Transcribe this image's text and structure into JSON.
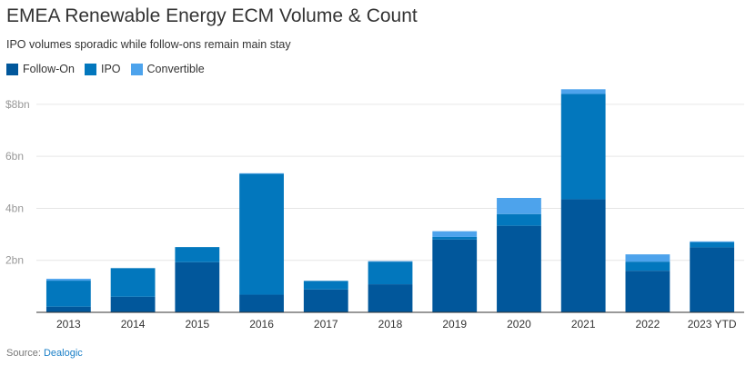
{
  "header": {
    "title": "EMEA Renewable Energy ECM Volume & Count",
    "subtitle": "IPO volumes sporadic while follow-ons remain main stay"
  },
  "source": {
    "label": "Source:",
    "link": "Dealogic"
  },
  "colors": {
    "follow_on": "#01579b",
    "ipo": "#0277bd",
    "convertible": "#4da3ec",
    "grid": "#e6e6e6",
    "axis": "#333333"
  },
  "chart_data": {
    "type": "bar",
    "stacked": true,
    "title": "EMEA Renewable Energy ECM Volume & Count",
    "subtitle": "IPO volumes sporadic while follow-ons remain main stay",
    "xlabel": "",
    "ylabel": "",
    "ylim": [
      0,
      8.8
    ],
    "yticks": [
      2,
      4,
      6,
      8
    ],
    "ytick_labels": [
      "2bn",
      "4bn",
      "6bn",
      "$8bn"
    ],
    "grid": true,
    "legend_position": "top-left",
    "categories": [
      "2013",
      "2014",
      "2015",
      "2016",
      "2017",
      "2018",
      "2019",
      "2020",
      "2021",
      "2022",
      "2023 YTD"
    ],
    "series": [
      {
        "name": "Follow-On",
        "values": [
          0.22,
          0.6,
          1.93,
          0.68,
          0.88,
          1.08,
          2.8,
          3.33,
          4.35,
          1.6,
          2.5
        ]
      },
      {
        "name": "IPO",
        "values": [
          1.0,
          1.1,
          0.58,
          4.65,
          0.33,
          0.87,
          0.1,
          0.45,
          4.05,
          0.35,
          0.2
        ]
      },
      {
        "name": "Convertible",
        "values": [
          0.07,
          0,
          0,
          0.02,
          0,
          0.02,
          0.22,
          0.62,
          0.18,
          0.28,
          0.03
        ]
      }
    ]
  }
}
